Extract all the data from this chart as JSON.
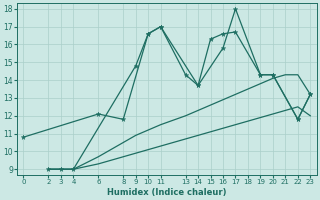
{
  "xlabel": "Humidex (Indice chaleur)",
  "xlim": [
    -0.5,
    23.5
  ],
  "ylim": [
    8.7,
    18.3
  ],
  "xticks": [
    0,
    2,
    3,
    4,
    6,
    8,
    9,
    10,
    11,
    13,
    14,
    15,
    16,
    17,
    18,
    19,
    20,
    21,
    22,
    23
  ],
  "yticks": [
    9,
    10,
    11,
    12,
    13,
    14,
    15,
    16,
    17,
    18
  ],
  "background_color": "#cce8e4",
  "grid_color": "#aacfca",
  "line_color": "#1e6e62",
  "series": [
    {
      "x": [
        2,
        3,
        4,
        9,
        10,
        11,
        14,
        16,
        17,
        19,
        20,
        22,
        23
      ],
      "y": [
        9,
        9,
        9,
        14.8,
        16.6,
        17.0,
        13.7,
        15.8,
        18,
        14.3,
        14.3,
        11.8,
        13.2
      ],
      "marker": true
    },
    {
      "x": [
        0,
        6,
        8,
        10,
        11,
        13,
        14,
        15,
        16,
        17,
        19,
        20,
        22,
        23
      ],
      "y": [
        10.8,
        12.1,
        11.8,
        16.6,
        17.0,
        14.3,
        13.7,
        16.3,
        16.6,
        16.7,
        14.3,
        14.3,
        11.8,
        13.2
      ],
      "marker": true
    },
    {
      "x": [
        2,
        3,
        4,
        6,
        8,
        9,
        10,
        11,
        13,
        14,
        15,
        16,
        17,
        18,
        19,
        20,
        21,
        22,
        23
      ],
      "y": [
        9.0,
        9.0,
        9.0,
        9.3,
        9.7,
        9.9,
        10.1,
        10.3,
        10.7,
        10.9,
        11.1,
        11.3,
        11.5,
        11.7,
        11.9,
        12.1,
        12.3,
        12.5,
        12.0
      ],
      "marker": false
    },
    {
      "x": [
        2,
        3,
        4,
        6,
        8,
        9,
        10,
        11,
        13,
        14,
        15,
        16,
        17,
        18,
        19,
        20,
        21,
        22,
        23
      ],
      "y": [
        9.0,
        9.0,
        9.0,
        9.7,
        10.5,
        10.9,
        11.2,
        11.5,
        12.0,
        12.3,
        12.6,
        12.9,
        13.2,
        13.5,
        13.8,
        14.1,
        14.3,
        14.3,
        13.2
      ],
      "marker": false
    }
  ]
}
